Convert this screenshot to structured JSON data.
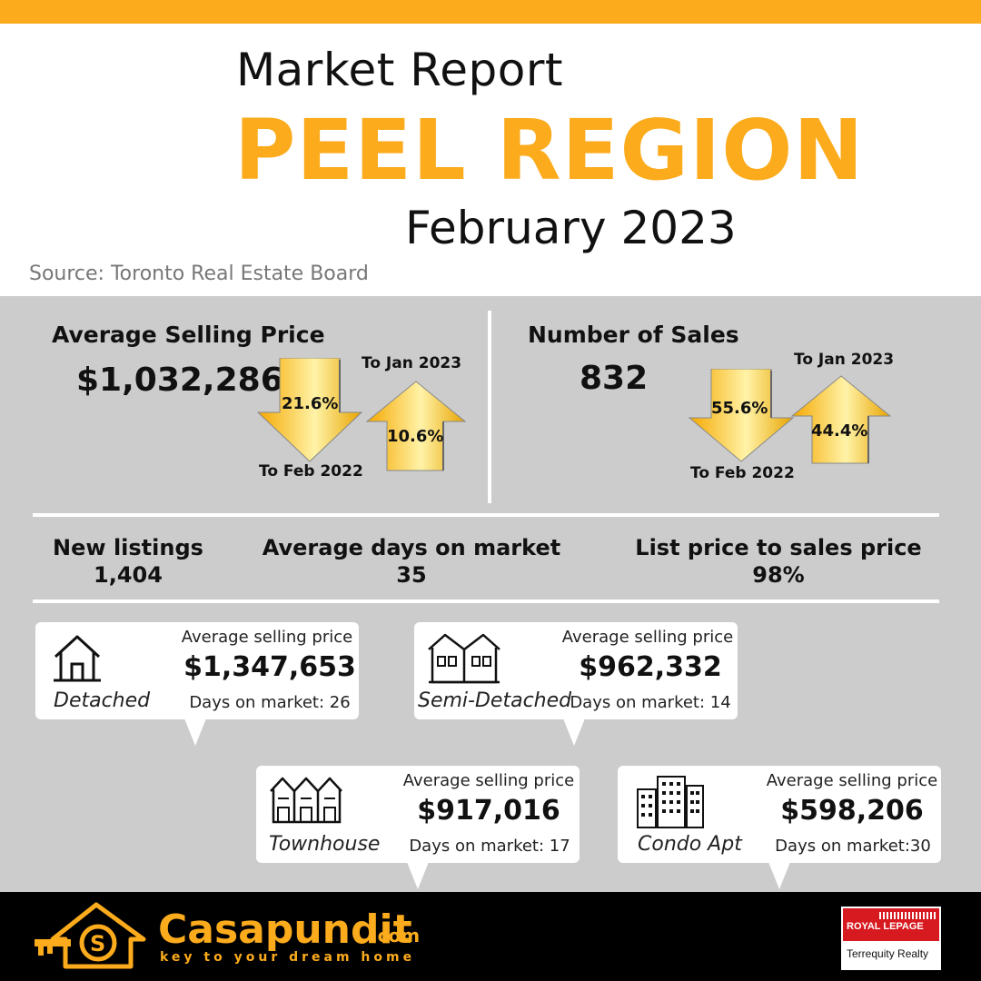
{
  "header": {
    "title_small": "Market Report",
    "title_big": "PEEL REGION",
    "date": "February 2023",
    "source": "Source: Toronto Real Estate Board"
  },
  "avg_price": {
    "title": "Average Selling Price",
    "value": "$1,032,286",
    "down_pct": "21.6%",
    "down_label": "To Feb 2022",
    "up_pct": "10.6%",
    "up_label": "To Jan 2023"
  },
  "num_sales": {
    "title": "Number of Sales",
    "value": "832",
    "down_pct": "55.6%",
    "down_label": "To Feb 2022",
    "up_pct": "44.4%",
    "up_label": "To Jan 2023"
  },
  "metrics": [
    {
      "label": "New listings",
      "value": "1,404"
    },
    {
      "label": "Average days on market",
      "value": "35"
    },
    {
      "label": "List price to sales price",
      "value": "98%"
    }
  ],
  "cards": [
    {
      "type": "Detached",
      "price_label": "Average selling price",
      "price": "$1,347,653",
      "days": "Days on market: 26",
      "icon": "house-icon"
    },
    {
      "type": "Semi-Detached",
      "price_label": "Average selling price",
      "price": "$962,332",
      "days": "Days on market: 14",
      "icon": "semi-detached-icon"
    },
    {
      "type": "Townhouse",
      "price_label": "Average selling price",
      "price": "$917,016",
      "days": "Days on market: 17",
      "icon": "townhouse-icon"
    },
    {
      "type": "Condo Apt",
      "price_label": "Average selling price",
      "price": "$598,206",
      "days": "Days on market:30",
      "icon": "condo-icon"
    }
  ],
  "footer": {
    "brand": "Casapundit",
    "domain": ".com",
    "tagline": "key to your dream home",
    "partner_name": "ROYAL LEPAGE",
    "partner_sub": "Terrequity Realty"
  },
  "colors": {
    "accent": "#fbab1c",
    "panel": "#cccccc",
    "footer": "#000000"
  }
}
